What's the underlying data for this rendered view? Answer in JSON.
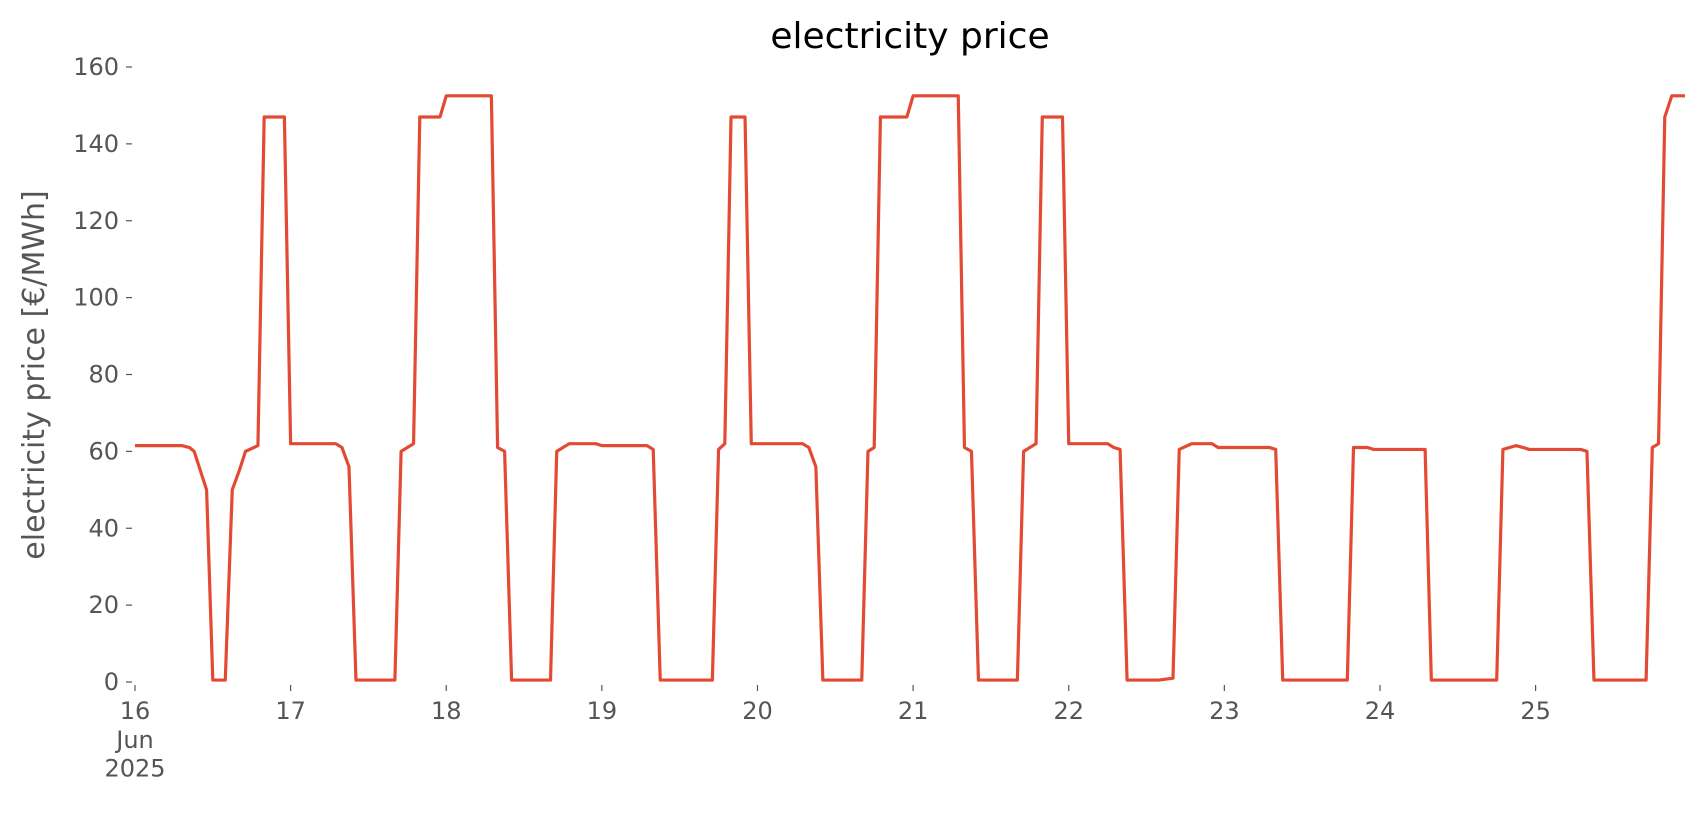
{
  "chart_data": {
    "type": "line",
    "title": "electricity price",
    "ylabel": "electricity price [€/MWh]",
    "x": [
      16,
      16.3,
      16.35,
      16.38,
      16.46,
      16.5,
      16.58,
      16.625,
      16.67,
      16.71,
      16.79,
      16.83,
      16.96,
      17.0,
      17.29,
      17.33,
      17.375,
      17.42,
      17.67,
      17.71,
      17.79,
      17.83,
      17.96,
      18.0,
      18.29,
      18.33,
      18.375,
      18.42,
      18.67,
      18.71,
      18.75,
      18.79,
      18.96,
      19.0,
      19.29,
      19.33,
      19.375,
      19.71,
      19.75,
      19.79,
      19.83,
      19.92,
      19.96,
      20.29,
      20.33,
      20.375,
      20.42,
      20.67,
      20.71,
      20.75,
      20.79,
      20.96,
      21.0,
      21.29,
      21.33,
      21.375,
      21.42,
      21.67,
      21.71,
      21.79,
      21.83,
      21.96,
      22.0,
      22.25,
      22.29,
      22.33,
      22.375,
      22.58,
      22.67,
      22.71,
      22.79,
      22.92,
      22.96,
      23.29,
      23.33,
      23.375,
      23.79,
      23.83,
      23.92,
      23.96,
      24.29,
      24.33,
      24.75,
      24.79,
      24.875,
      24.92,
      24.96,
      25.29,
      25.33,
      25.375,
      25.71,
      25.75,
      25.79,
      25.83,
      25.875,
      25.96
    ],
    "values": [
      61.5,
      61.5,
      61,
      60,
      50,
      0.5,
      0.5,
      50,
      55,
      60,
      61.5,
      147,
      147,
      62,
      62,
      61,
      56,
      0.5,
      0.5,
      60,
      62,
      147,
      147,
      152.5,
      152.5,
      61,
      60,
      0.5,
      0.5,
      60,
      61,
      62,
      62,
      61.5,
      61.5,
      60.5,
      0.5,
      0.5,
      60.5,
      62,
      147,
      147,
      62,
      62,
      61,
      56,
      0.5,
      0.5,
      60,
      61,
      147,
      147,
      152.5,
      152.5,
      61,
      60,
      0.5,
      0.5,
      60,
      62,
      147,
      147,
      62,
      62,
      61,
      60.5,
      0.5,
      0.5,
      1,
      60.5,
      62,
      62,
      61,
      61,
      60.5,
      0.5,
      0.5,
      61,
      61,
      60.5,
      60.5,
      0.5,
      0.5,
      60.5,
      61.5,
      61,
      60.5,
      60.5,
      60,
      0.5,
      0.5,
      61,
      62,
      147,
      152.5,
      152.5
    ],
    "color": "#e24a33",
    "xlim": [
      16,
      25.96
    ],
    "ylim": [
      0,
      160
    ],
    "xticks": [
      {
        "value": 16,
        "label": "16\nJun\n2025"
      },
      17,
      18,
      19,
      20,
      21,
      22,
      23,
      24,
      25
    ],
    "yticks": [
      0,
      20,
      40,
      60,
      80,
      100,
      120,
      140,
      160
    ],
    "grid": false
  }
}
